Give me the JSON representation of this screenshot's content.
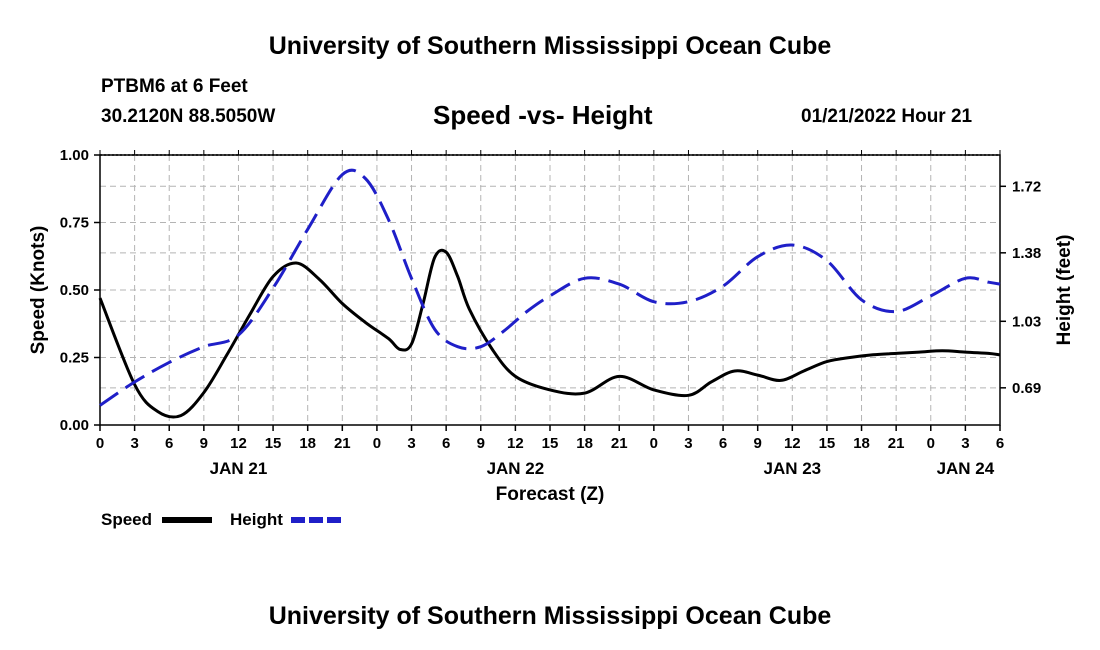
{
  "header": {
    "title": "University of Southern Mississippi Ocean Cube",
    "station": "PTBM6 at 6 Feet",
    "coords": "30.2120N  88.5050W",
    "subtitle": "Speed -vs- Height",
    "timestamp": "01/21/2022 Hour 21"
  },
  "footer": {
    "title": "University of Southern Mississippi Ocean Cube"
  },
  "chart_data": {
    "type": "line",
    "title": "Speed -vs- Height",
    "xlabel": "Forecast (Z)",
    "ylabel": "Speed (Knots)",
    "y2label": "Height (feet)",
    "x_unit": "hours since 2022-01-21 00Z",
    "xlim": [
      0,
      78
    ],
    "ylim": [
      0,
      1
    ],
    "y2lim": [
      0.5,
      1.88
    ],
    "x_ticks": [
      0,
      3,
      6,
      9,
      12,
      15,
      18,
      21,
      24,
      27,
      30,
      33,
      36,
      39,
      42,
      45,
      48,
      51,
      54,
      57,
      60,
      63,
      66,
      69,
      72,
      75,
      78
    ],
    "x_tick_labels": [
      "0",
      "3",
      "6",
      "9",
      "12",
      "15",
      "18",
      "21",
      "0",
      "3",
      "6",
      "9",
      "12",
      "15",
      "18",
      "21",
      "0",
      "3",
      "6",
      "9",
      "12",
      "15",
      "18",
      "21",
      "0",
      "3",
      "6"
    ],
    "date_labels": [
      {
        "label": "JAN 21",
        "hour": 12
      },
      {
        "label": "JAN 22",
        "hour": 36
      },
      {
        "label": "JAN 23",
        "hour": 60
      },
      {
        "label": "JAN 24",
        "hour": 75
      }
    ],
    "y_ticks": [
      0,
      0.25,
      0.5,
      0.75,
      1.0
    ],
    "y_tick_labels": [
      "0.00",
      "0.25",
      "0.50",
      "0.75",
      "1.00"
    ],
    "y2_ticks": [
      0.69,
      1.03,
      1.38,
      1.72
    ],
    "y2_tick_labels": [
      "0.69",
      "1.03",
      "1.38",
      "1.72"
    ],
    "grid": true,
    "series": [
      {
        "name": "Speed",
        "axis": "left",
        "color": "#000000",
        "dash": "solid",
        "x": [
          0,
          3,
          5,
          7,
          9,
          11,
          13,
          15,
          17,
          19,
          21,
          23,
          25,
          26,
          27,
          28,
          29,
          30,
          31,
          32,
          34,
          36,
          39,
          42,
          45,
          48,
          51,
          53,
          55,
          57,
          59,
          61,
          63,
          65,
          67,
          69,
          71,
          73,
          75,
          77,
          78
        ],
        "y": [
          0.47,
          0.15,
          0.05,
          0.035,
          0.12,
          0.26,
          0.41,
          0.55,
          0.6,
          0.54,
          0.45,
          0.38,
          0.32,
          0.28,
          0.3,
          0.45,
          0.62,
          0.64,
          0.55,
          0.43,
          0.28,
          0.18,
          0.13,
          0.118,
          0.18,
          0.13,
          0.11,
          0.16,
          0.2,
          0.185,
          0.165,
          0.2,
          0.235,
          0.25,
          0.26,
          0.265,
          0.27,
          0.275,
          0.27,
          0.265,
          0.26
        ]
      },
      {
        "name": "Height",
        "axis": "right",
        "color": "#1f1fc8",
        "dash": "dashed",
        "x": [
          0,
          3,
          6,
          9,
          12,
          15,
          18,
          21,
          23,
          25,
          27,
          29,
          31,
          33,
          35,
          37,
          39,
          42,
          45,
          48,
          51,
          54,
          57,
          60,
          63,
          66,
          69,
          72,
          75,
          77,
          78
        ],
        "y": [
          0.6,
          0.72,
          0.82,
          0.9,
          0.96,
          1.2,
          1.5,
          1.78,
          1.76,
          1.55,
          1.25,
          0.99,
          0.9,
          0.9,
          0.98,
          1.08,
          1.16,
          1.25,
          1.22,
          1.13,
          1.13,
          1.21,
          1.36,
          1.42,
          1.34,
          1.14,
          1.08,
          1.16,
          1.25,
          1.23,
          1.22
        ]
      }
    ],
    "legend": [
      {
        "label": "Speed",
        "color": "#000000",
        "dash": "solid"
      },
      {
        "label": "Height",
        "color": "#1f1fc8",
        "dash": "dashed"
      }
    ],
    "legend_position": "bottom-left"
  }
}
